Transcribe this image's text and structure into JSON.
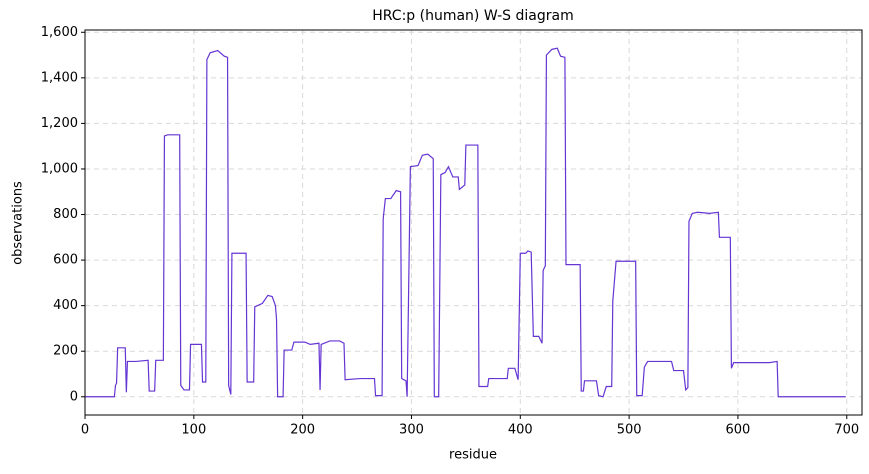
{
  "chart_data": {
    "type": "line",
    "title": "HRC:p (human) W-S diagram",
    "x_label": "residue",
    "y_label": "observations",
    "color": "#6535d4",
    "x": [
      0,
      27,
      28,
      29,
      30,
      37,
      38,
      39,
      47,
      58,
      59,
      64,
      65,
      72,
      73,
      76,
      87,
      88,
      91,
      96,
      97,
      107,
      108,
      111,
      112,
      115,
      122,
      128,
      131,
      132,
      134,
      135,
      148,
      149,
      155,
      156,
      163,
      168,
      172,
      175,
      176,
      177,
      182,
      183,
      190,
      192,
      202,
      207,
      215,
      216,
      217,
      225,
      234,
      238,
      239,
      253,
      266,
      267,
      273,
      274,
      276,
      281,
      286,
      290,
      291,
      295,
      296,
      299,
      306,
      310,
      315,
      320,
      321,
      325,
      327,
      331,
      334,
      338,
      343,
      344,
      349,
      350,
      361,
      362,
      370,
      371,
      388,
      389,
      395,
      398,
      400,
      405,
      407,
      410,
      412,
      417,
      420,
      421,
      423,
      424,
      429,
      434,
      437,
      441,
      442,
      455,
      456,
      458,
      459,
      470,
      472,
      476,
      479,
      484,
      485,
      488,
      506,
      507,
      512,
      514,
      517,
      539,
      541,
      550,
      552,
      554,
      555,
      558,
      563,
      574,
      582,
      583,
      593,
      594,
      596,
      629,
      636,
      637,
      699
    ],
    "values": [
      0,
      0,
      50,
      60,
      215,
      215,
      20,
      155,
      155,
      160,
      25,
      25,
      160,
      160,
      1145,
      1150,
      1150,
      50,
      30,
      30,
      230,
      230,
      65,
      65,
      1480,
      1510,
      1520,
      1495,
      1490,
      50,
      10,
      630,
      630,
      65,
      65,
      395,
      410,
      445,
      440,
      400,
      340,
      0,
      0,
      205,
      205,
      240,
      240,
      230,
      235,
      30,
      230,
      245,
      245,
      235,
      75,
      80,
      80,
      5,
      5,
      780,
      870,
      870,
      905,
      900,
      80,
      70,
      0,
      1010,
      1015,
      1060,
      1065,
      1045,
      0,
      0,
      975,
      985,
      1010,
      965,
      965,
      910,
      930,
      1105,
      1105,
      45,
      45,
      80,
      80,
      125,
      125,
      75,
      630,
      630,
      640,
      635,
      265,
      265,
      235,
      555,
      575,
      1500,
      1525,
      1530,
      1495,
      1490,
      580,
      580,
      25,
      25,
      70,
      70,
      5,
      0,
      45,
      45,
      420,
      595,
      595,
      5,
      5,
      130,
      155,
      155,
      115,
      115,
      30,
      40,
      770,
      805,
      810,
      805,
      810,
      700,
      700,
      125,
      150,
      150,
      155,
      0,
      0
    ],
    "xlim": [
      0,
      714
    ],
    "xticks": [
      0,
      100,
      200,
      300,
      400,
      500,
      600,
      700
    ],
    "ylim": [
      -80,
      1610
    ],
    "yticks": [
      0,
      200,
      400,
      600,
      800,
      {
        "value": 1000,
        "label": "1,000"
      },
      {
        "value": 1200,
        "label": "1,200"
      },
      {
        "value": 1400,
        "label": "1,400"
      },
      {
        "value": 1600,
        "label": "1,600"
      }
    ],
    "grid": true
  }
}
